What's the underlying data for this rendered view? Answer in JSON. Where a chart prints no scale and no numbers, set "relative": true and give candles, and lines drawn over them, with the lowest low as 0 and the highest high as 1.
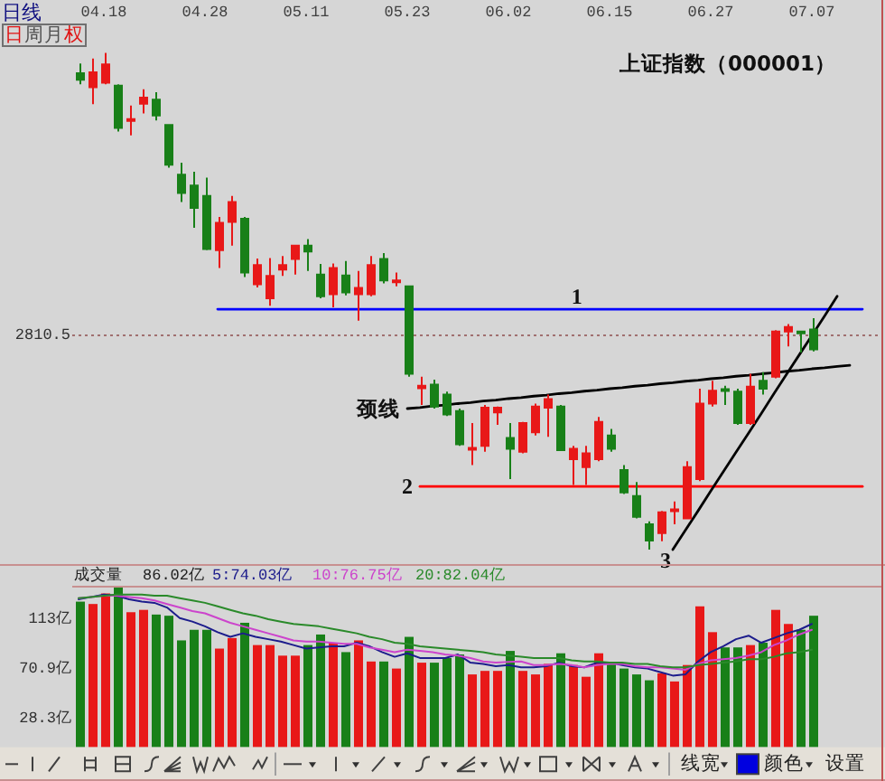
{
  "chart_data": [
    {
      "type": "candlestick",
      "title": "上证指数（000001）",
      "relative": true,
      "tick_labels": "x",
      "categories": [
        null,
        null,
        "04.18",
        null,
        null,
        null,
        null,
        null,
        null,
        null,
        "04.28",
        null,
        null,
        null,
        null,
        null,
        null,
        null,
        "05.11",
        null,
        null,
        null,
        null,
        null,
        null,
        null,
        "05.23",
        null,
        null,
        null,
        null,
        null,
        null,
        null,
        "06.02",
        null,
        null,
        null,
        null,
        null,
        null,
        null,
        "06.15",
        null,
        null,
        null,
        null,
        null,
        null,
        null,
        "06.27",
        null,
        null,
        null,
        null,
        null,
        null,
        null,
        "07.07",
        null,
        null,
        null,
        null,
        null
      ],
      "ohlc": [
        [
          0.959,
          0.979,
          0.937,
          0.946
        ],
        [
          0.931,
          0.989,
          0.897,
          0.961
        ],
        [
          0.94,
          1.0,
          0.937,
          0.977
        ],
        [
          0.934,
          0.937,
          0.842,
          0.849
        ],
        [
          0.865,
          0.894,
          0.834,
          0.867
        ],
        [
          0.898,
          0.927,
          0.878,
          0.91
        ],
        [
          0.906,
          0.921,
          0.864,
          0.874
        ],
        [
          0.855,
          0.855,
          0.769,
          0.775
        ],
        [
          0.755,
          0.779,
          0.7,
          0.718
        ],
        [
          0.733,
          0.761,
          0.648,
          0.688
        ],
        [
          0.712,
          0.749,
          0.603,
          0.605
        ],
        [
          0.603,
          0.67,
          0.567,
          0.658
        ],
        [
          0.66,
          0.712,
          0.612,
          0.7
        ],
        [
          0.666,
          0.67,
          0.549,
          0.558
        ],
        [
          0.534,
          0.586,
          0.528,
          0.573
        ],
        [
          0.506,
          0.587,
          0.491,
          0.551
        ],
        [
          0.564,
          0.591,
          0.551,
          0.573
        ],
        [
          0.585,
          0.612,
          0.554,
          0.612
        ],
        [
          0.612,
          0.625,
          0.561,
          0.6
        ],
        [
          0.554,
          0.575,
          0.506,
          0.51
        ],
        [
          0.514,
          0.576,
          0.488,
          0.567
        ],
        [
          0.552,
          0.581,
          0.512,
          0.518
        ],
        [
          0.514,
          0.561,
          0.461,
          0.527
        ],
        [
          0.514,
          0.591,
          0.51,
          0.573
        ],
        [
          0.585,
          0.597,
          0.536,
          0.542
        ],
        [
          0.539,
          0.558,
          0.53,
          0.542
        ],
        [
          0.53,
          0.531,
          0.348,
          0.354
        ],
        [
          0.325,
          0.348,
          0.291,
          0.33
        ],
        [
          0.332,
          0.342,
          0.284,
          0.288
        ],
        [
          0.312,
          0.318,
          0.269,
          0.272
        ],
        [
          0.279,
          0.284,
          0.209,
          0.212
        ],
        [
          0.203,
          0.255,
          0.17,
          0.205
        ],
        [
          0.209,
          0.291,
          0.197,
          0.286
        ],
        [
          0.276,
          0.288,
          0.251,
          0.286
        ],
        [
          0.225,
          0.255,
          0.142,
          0.203
        ],
        [
          0.197,
          0.257,
          0.194,
          0.255
        ],
        [
          0.236,
          0.294,
          0.23,
          0.288
        ],
        [
          0.286,
          0.312,
          0.227,
          0.303
        ],
        [
          0.288,
          0.291,
          0.199,
          0.2
        ],
        [
          0.182,
          0.209,
          0.13,
          0.203
        ],
        [
          0.166,
          0.209,
          0.13,
          0.194
        ],
        [
          0.182,
          0.267,
          0.178,
          0.257
        ],
        [
          0.23,
          0.243,
          0.197,
          0.203
        ],
        [
          0.16,
          0.17,
          0.112,
          0.115
        ],
        [
          0.108,
          0.136,
          0.063,
          0.066
        ],
        [
          0.051,
          0.057,
          0.0,
          0.018
        ],
        [
          0.033,
          0.078,
          0.017,
          0.075
        ],
        [
          0.079,
          0.097,
          0.051,
          0.081
        ],
        [
          0.063,
          0.178,
          0.061,
          0.166
        ],
        [
          0.142,
          0.324,
          0.138,
          0.294
        ],
        [
          0.294,
          0.34,
          0.288,
          0.32
        ],
        [
          0.323,
          0.33,
          0.291,
          0.322
        ],
        [
          0.318,
          0.324,
          0.251,
          0.255
        ],
        [
          0.255,
          0.354,
          0.251,
          0.328
        ],
        [
          0.34,
          0.357,
          0.312,
          0.324
        ],
        [
          0.348,
          0.442,
          0.345,
          0.439
        ],
        [
          0.439,
          0.454,
          0.409,
          0.448
        ],
        [
          0.439,
          0.439,
          0.397,
          0.436
        ],
        [
          0.443,
          0.466,
          0.399,
          0.403
        ],
        null,
        null,
        null,
        null,
        null
      ],
      "colors": [
        "#188018",
        "#e81818",
        "#e81818",
        "#188018",
        "#e81818",
        "#e81818",
        "#188018",
        "#188018",
        "#188018",
        "#188018",
        "#188018",
        "#e81818",
        "#e81818",
        "#188018",
        "#e81818",
        "#e81818",
        "#e81818",
        "#e81818",
        "#188018",
        "#188018",
        "#e81818",
        "#188018",
        "#e81818",
        "#e81818",
        "#188018",
        "#e81818",
        "#188018",
        "#e81818",
        "#188018",
        "#188018",
        "#188018",
        "#e81818",
        "#e81818",
        "#e81818",
        "#188018",
        "#e81818",
        "#e81818",
        "#e81818",
        "#188018",
        "#e81818",
        "#e81818",
        "#e81818",
        "#188018",
        "#188018",
        "#188018",
        "#188018",
        "#e81818",
        "#e81818",
        "#e81818",
        "#e81818",
        "#e81818",
        "#188018",
        "#188018",
        "#e81818",
        "#188018",
        "#e81818",
        "#e81818",
        "#188018",
        "#188018",
        null,
        null,
        null,
        null,
        null
      ],
      "ref_lines": [
        {
          "axis": "y",
          "value": 0.433,
          "color": "#a07070",
          "line_style": "dotted"
        }
      ],
      "series": [
        {
          "type": "line",
          "name": "1",
          "color": "#0000ff",
          "values": [
            null,
            null,
            null,
            null,
            null,
            null,
            null,
            null,
            null,
            null,
            null,
            0.484,
            0.484,
            0.484,
            0.484,
            0.484,
            0.484,
            0.484,
            0.484,
            0.484,
            0.484,
            0.484,
            0.484,
            0.484,
            0.484,
            0.484,
            0.484,
            0.484,
            0.484,
            0.484,
            0.484,
            0.484,
            0.484,
            0.484,
            0.484,
            0.484,
            0.484,
            0.484,
            0.484,
            0.484,
            0.484,
            0.484,
            0.484,
            0.484,
            0.484,
            0.484,
            0.484,
            0.484,
            0.484,
            0.484,
            0.484,
            0.484,
            0.484,
            0.484,
            0.484,
            0.484,
            0.484,
            0.484,
            0.484,
            0.484,
            0.484,
            0.484,
            0.484,
            null
          ]
        },
        {
          "type": "line",
          "name": "颈线",
          "color": "#000000",
          "values": [
            null,
            null,
            null,
            null,
            null,
            null,
            null,
            null,
            null,
            null,
            null,
            null,
            null,
            null,
            null,
            null,
            null,
            null,
            null,
            null,
            null,
            null,
            null,
            null,
            null,
            null,
            0.284,
            0.286,
            0.289,
            0.291,
            0.294,
            0.296,
            0.299,
            0.301,
            0.304,
            0.306,
            0.309,
            0.311,
            0.314,
            0.316,
            0.319,
            0.321,
            0.324,
            0.326,
            0.329,
            0.331,
            0.334,
            0.336,
            0.339,
            0.341,
            0.344,
            0.346,
            0.349,
            0.351,
            0.354,
            0.356,
            0.359,
            0.361,
            0.364,
            0.366,
            0.369,
            0.371,
            null,
            null
          ]
        },
        {
          "type": "line",
          "name": "2",
          "color": "#ff0000",
          "values": [
            null,
            null,
            null,
            null,
            null,
            null,
            null,
            null,
            null,
            null,
            null,
            null,
            null,
            null,
            null,
            null,
            null,
            null,
            null,
            null,
            null,
            null,
            null,
            null,
            null,
            null,
            null,
            0.127,
            0.127,
            0.127,
            0.127,
            0.127,
            0.127,
            0.127,
            0.127,
            0.127,
            0.127,
            0.127,
            0.127,
            0.127,
            0.127,
            0.127,
            0.127,
            0.127,
            0.127,
            0.127,
            0.127,
            0.127,
            0.127,
            0.127,
            0.127,
            0.127,
            0.127,
            0.127,
            0.127,
            0.127,
            0.127,
            0.127,
            0.127,
            0.127,
            0.127,
            0.127,
            0.127,
            null
          ]
        },
        {
          "type": "line",
          "name": "3",
          "color": "#000000",
          "values": [
            null,
            null,
            null,
            null,
            null,
            null,
            null,
            null,
            null,
            null,
            null,
            null,
            null,
            null,
            null,
            null,
            null,
            null,
            null,
            null,
            null,
            null,
            null,
            null,
            null,
            null,
            null,
            null,
            null,
            null,
            null,
            null,
            null,
            null,
            null,
            null,
            null,
            null,
            null,
            null,
            null,
            null,
            null,
            null,
            null,
            null,
            null,
            0.0,
            0.039,
            0.078,
            0.118,
            0.157,
            0.196,
            0.235,
            0.274,
            0.314,
            0.353,
            0.392,
            0.431,
            0.47,
            0.51,
            null,
            null,
            null
          ]
        }
      ],
      "annotations": [
        "日线",
        "日周月权",
        "2810.5"
      ]
    },
    {
      "type": "bar",
      "title": "成交量",
      "tick_labels": "y",
      "ylim": [
        4,
        140
      ],
      "yticks": [
        {
          "value": 28.3,
          "label": "28.3亿"
        },
        {
          "value": 70.9,
          "label": "70.9亿"
        },
        {
          "value": 113,
          "label": "113亿"
        }
      ],
      "categories": [
        null,
        null,
        null,
        null,
        null,
        null,
        null,
        null,
        null,
        null,
        null,
        null,
        null,
        null,
        null,
        null,
        null,
        null,
        null,
        null,
        null,
        null,
        null,
        null,
        null,
        null,
        null,
        null,
        null,
        null,
        null,
        null,
        null,
        null,
        null,
        null,
        null,
        null,
        null,
        null,
        null,
        null,
        null,
        null,
        null,
        null,
        null,
        null,
        null,
        null,
        null,
        null,
        null,
        null,
        null,
        null,
        null,
        null,
        null,
        null,
        null,
        null,
        null,
        null
      ],
      "series": [
        {
          "type": "bar",
          "values": [
            128,
            126,
            135,
            140,
            119,
            121,
            117,
            116,
            95,
            104,
            104,
            88,
            97,
            110,
            91,
            91,
            82,
            82,
            91,
            100,
            93,
            85,
            95,
            77,
            77,
            71,
            98,
            76,
            76,
            80,
            83,
            66,
            69,
            69,
            86.02,
            69,
            66,
            75,
            84,
            74,
            64,
            84,
            76,
            71,
            66,
            61,
            67,
            60,
            74,
            124,
            102,
            89,
            89,
            91,
            93,
            121,
            109,
            104,
            116,
            null,
            null,
            null,
            null,
            null
          ],
          "colors": [
            "#188018",
            "#e81818",
            "#e81818",
            "#188018",
            "#e81818",
            "#e81818",
            "#188018",
            "#188018",
            "#188018",
            "#188018",
            "#188018",
            "#e81818",
            "#e81818",
            "#188018",
            "#e81818",
            "#e81818",
            "#e81818",
            "#e81818",
            "#188018",
            "#188018",
            "#e81818",
            "#188018",
            "#e81818",
            "#e81818",
            "#188018",
            "#e81818",
            "#188018",
            "#e81818",
            "#188018",
            "#188018",
            "#188018",
            "#e81818",
            "#e81818",
            "#e81818",
            "#188018",
            "#e81818",
            "#e81818",
            "#e81818",
            "#188018",
            "#e81818",
            "#e81818",
            "#e81818",
            "#188018",
            "#188018",
            "#188018",
            "#188018",
            "#e81818",
            "#e81818",
            "#e81818",
            "#e81818",
            "#e81818",
            "#188018",
            "#188018",
            "#e81818",
            "#188018",
            "#e81818",
            "#e81818",
            "#188018",
            "#188018",
            null,
            null,
            null,
            null,
            null
          ]
        },
        {
          "type": "line",
          "name": "5:74.03亿",
          "color": "#1c1c8c",
          "values": [
            130,
            132,
            134,
            133,
            130,
            128,
            127,
            123,
            114,
            111,
            107,
            102,
            98,
            101,
            98,
            96,
            94,
            91,
            88,
            89,
            90,
            90,
            93,
            90,
            85,
            81,
            84,
            80,
            80,
            80,
            83,
            76,
            75,
            73,
            74.03,
            72,
            72,
            73,
            76,
            73,
            72,
            76,
            76,
            74,
            72,
            71,
            68,
            65,
            66,
            77,
            85,
            90,
            96,
            99,
            93,
            97,
            101,
            104,
            109,
            null,
            null,
            null,
            null,
            null
          ]
        },
        {
          "type": "line",
          "name": "10:76.75亿",
          "color": "#cc44cc",
          "values": [
            131,
            132,
            133,
            133,
            132,
            131,
            129,
            126,
            123,
            120,
            118,
            114,
            110,
            107,
            104,
            101,
            98,
            95,
            94,
            94,
            93,
            92,
            92,
            89,
            87,
            85,
            87,
            86,
            85,
            83,
            82,
            80,
            77,
            76,
            76.75,
            77,
            74,
            74,
            75,
            74,
            72,
            74,
            75,
            75,
            73,
            72,
            72,
            71,
            70,
            75,
            78,
            79,
            80,
            82,
            85,
            91,
            95,
            100,
            104,
            null,
            null,
            null,
            null,
            null
          ]
        },
        {
          "type": "line",
          "name": "20:82.04亿",
          "color": "#2a8a2a",
          "values": [
            131,
            132,
            133,
            134,
            134,
            134,
            133,
            133,
            131,
            129,
            127,
            124,
            121,
            118,
            116,
            113,
            111,
            109,
            108,
            107,
            105,
            103,
            101,
            98,
            96,
            93,
            92,
            90,
            89,
            88,
            87,
            86,
            85,
            83,
            82.04,
            81,
            80,
            80,
            80,
            78,
            77,
            77,
            76,
            76,
            75,
            75,
            73,
            72,
            72,
            74,
            75,
            76,
            77,
            79,
            79,
            81,
            84,
            85,
            87,
            null,
            null,
            null,
            null,
            null
          ]
        }
      ],
      "annotations": [
        "86.02亿"
      ]
    },
    {
      "type": "other",
      "annotations": [
        "线宽",
        "颜色",
        "设置"
      ]
    }
  ]
}
